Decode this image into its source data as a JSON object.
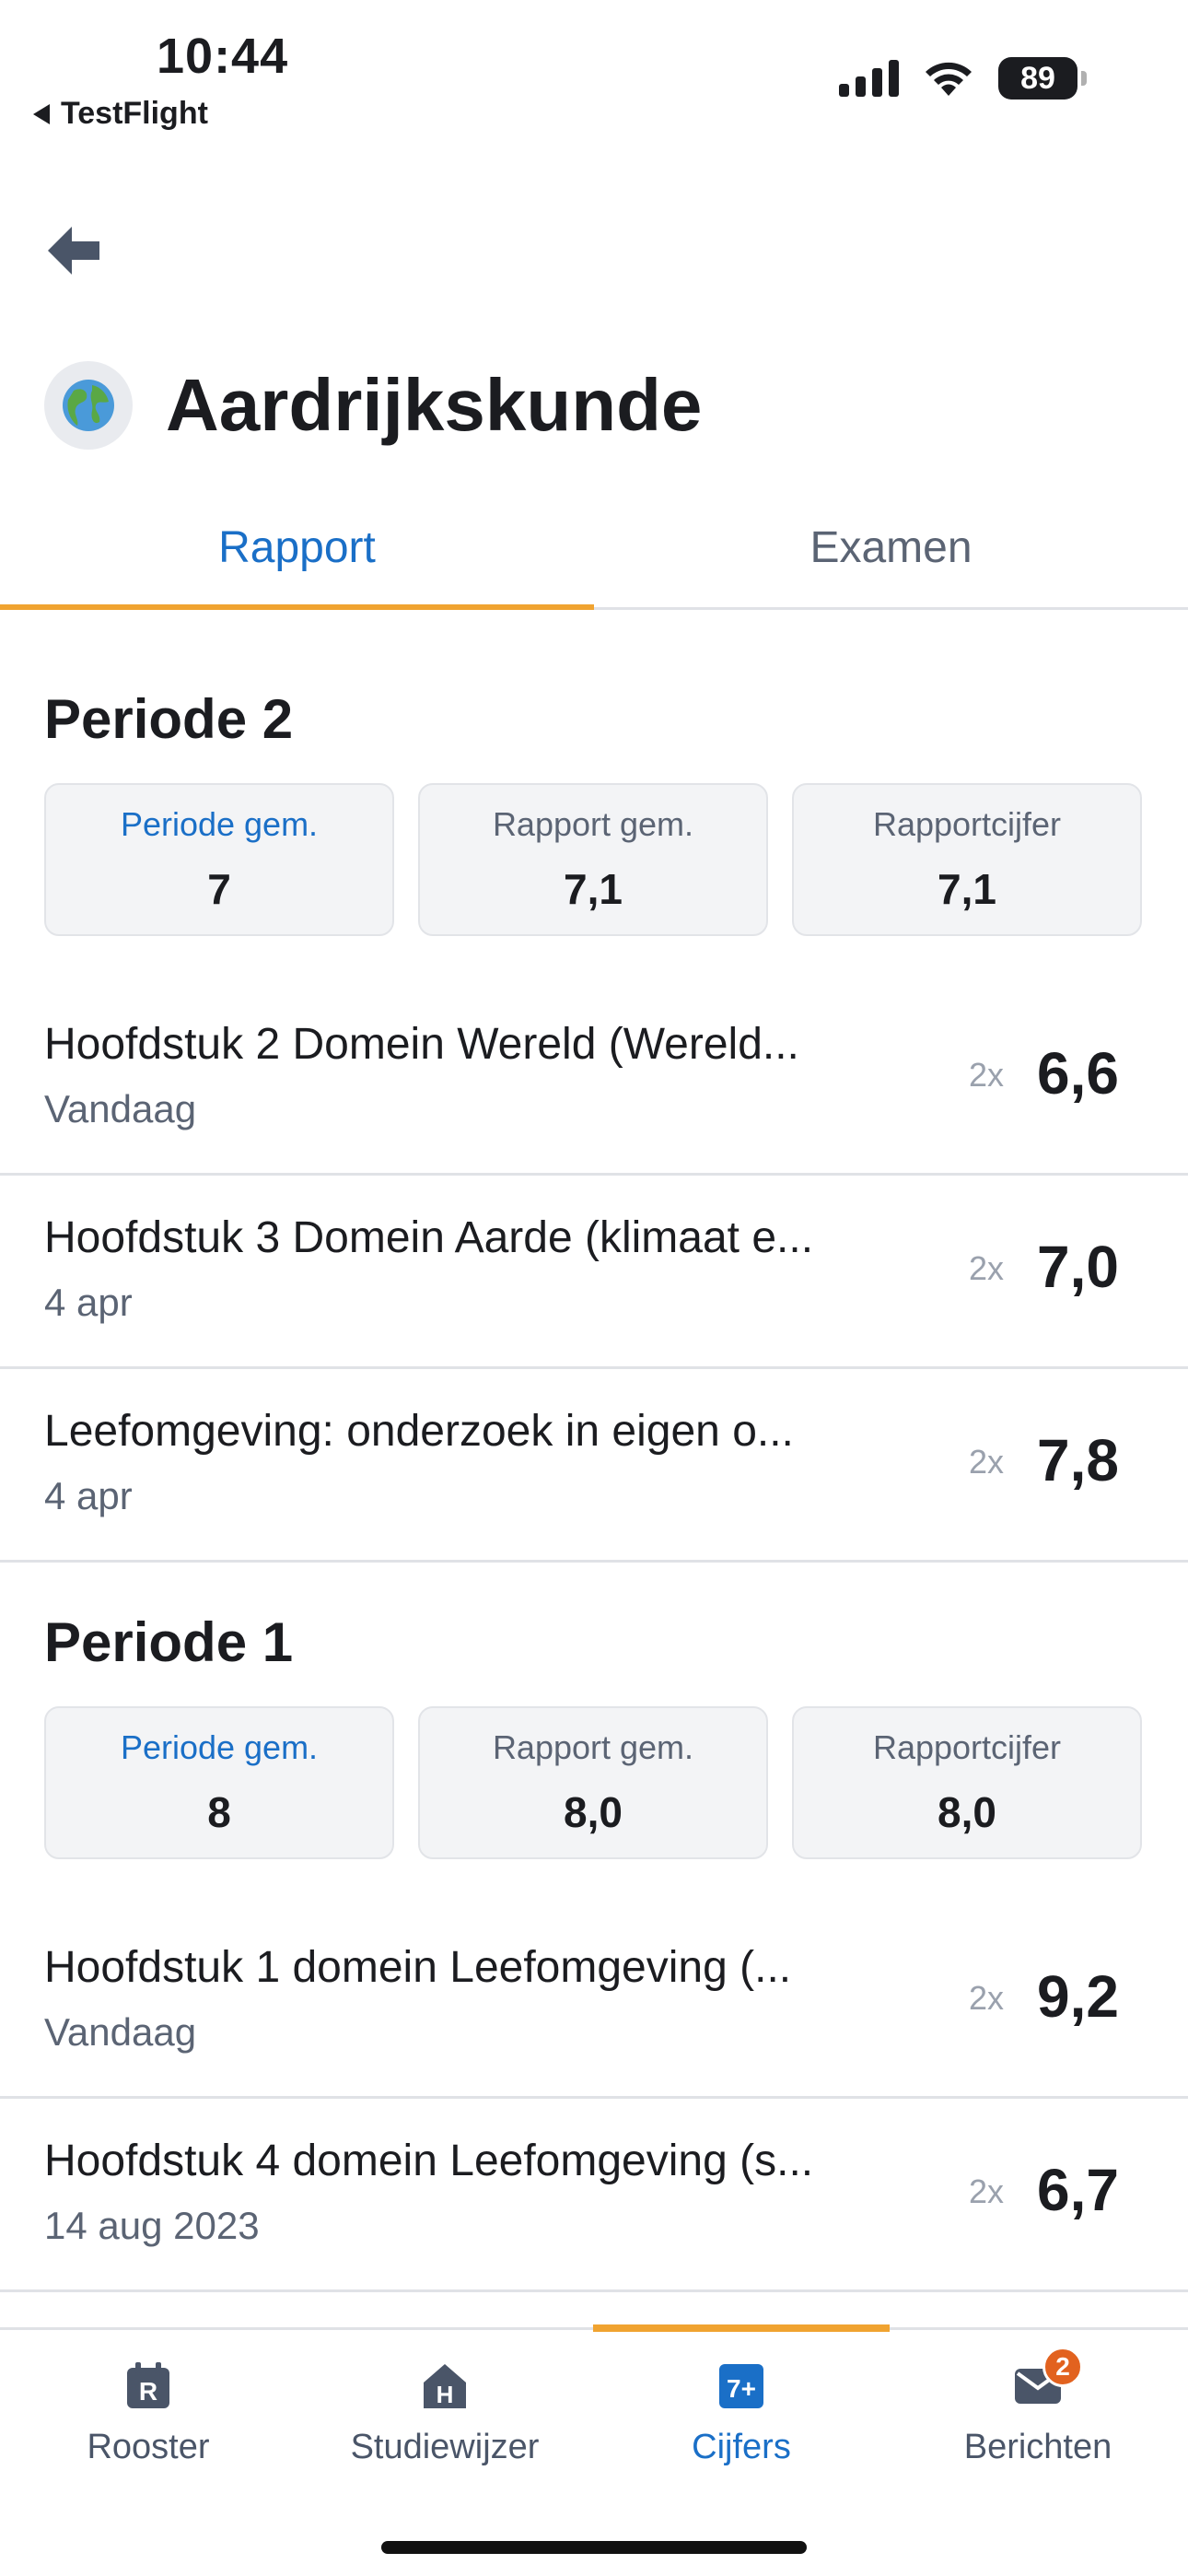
{
  "status_bar": {
    "time": "10:44",
    "back_app": "TestFlight",
    "battery": "89"
  },
  "header": {
    "back_icon": "arrow-left-icon",
    "subject_icon": "globe-icon",
    "title": "Aardrijkskunde"
  },
  "tabs": [
    {
      "label": "Rapport",
      "active": true
    },
    {
      "label": "Examen",
      "active": false
    }
  ],
  "periods": [
    {
      "title": "Periode 2",
      "stats": [
        {
          "label": "Periode gem.",
          "value": "7"
        },
        {
          "label": "Rapport gem.",
          "value": "7,1"
        },
        {
          "label": "Rapportcijfer",
          "value": "7,1"
        }
      ],
      "grades": [
        {
          "title": "Hoofdstuk 2 Domein Wereld (Wereld...",
          "date": "Vandaag",
          "weight": "2x",
          "value": "6,6"
        },
        {
          "title": "Hoofdstuk 3 Domein Aarde (klimaat e...",
          "date": "4 apr",
          "weight": "2x",
          "value": "7,0"
        },
        {
          "title": "Leefomgeving: onderzoek in eigen o...",
          "date": "4 apr",
          "weight": "2x",
          "value": "7,8"
        }
      ]
    },
    {
      "title": "Periode 1",
      "stats": [
        {
          "label": "Periode gem.",
          "value": "8"
        },
        {
          "label": "Rapport gem.",
          "value": "8,0"
        },
        {
          "label": "Rapportcijfer",
          "value": "8,0"
        }
      ],
      "grades": [
        {
          "title": "Hoofdstuk 1 domein Leefomgeving (...",
          "date": "Vandaag",
          "weight": "2x",
          "value": "9,2"
        },
        {
          "title": "Hoofdstuk 4 domein Leefomgeving (s...",
          "date": "14 aug 2023",
          "weight": "2x",
          "value": "6,7"
        }
      ]
    }
  ],
  "bottom_nav": [
    {
      "label": "Rooster",
      "icon": "rooster-icon",
      "glyph": "R",
      "active": false
    },
    {
      "label": "Studiewijzer",
      "icon": "studiewijzer-icon",
      "glyph": "H",
      "active": false
    },
    {
      "label": "Cijfers",
      "icon": "cijfers-icon",
      "glyph": "7+",
      "active": true
    },
    {
      "label": "Berichten",
      "icon": "envelope-icon",
      "badge": "2",
      "active": false
    }
  ],
  "colors": {
    "accent": "#1a6fc7",
    "indicator": "#f0a330",
    "badge": "#e2621f"
  }
}
